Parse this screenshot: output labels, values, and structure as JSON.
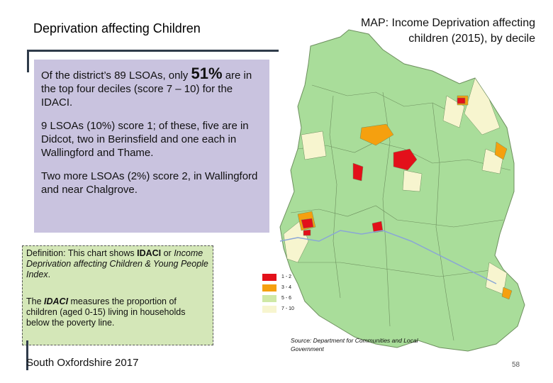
{
  "left": {
    "title": "Deprivation affecting Children",
    "summary": {
      "p1_start": "Of the district’s 89 LSOAs, only ",
      "p1_pct": "51%",
      "p1_end": " are in the top four deciles (score 7 – 10) for the IDACI.",
      "p2": "9 LSOAs (10%) score 1; of these, five are in Didcot, two in Berinsfield and one each in Wallingford and Thame.",
      "p3": "Two more LSOAs (2%) score 2, in Wallingford and near Chalgrove."
    },
    "definition": {
      "d1_a": "Definition: This chart shows ",
      "d1_b": "IDACI",
      "d1_c": " or ",
      "d1_d": "Income Deprivation affecting Children & Young People Index",
      "d1_e": ".",
      "d2_a": "The ",
      "d2_b": "IDACI",
      "d2_c": " measures the proportion of children (aged 0-15) living in households below the poverty line."
    },
    "footer": "South Oxfordshire 2017"
  },
  "map": {
    "title": "MAP: Income Deprivation affecting children (2015), by decile",
    "legend": [
      {
        "label": "1 - 2",
        "color": "#e3101a"
      },
      {
        "label": "3 - 4",
        "color": "#f5a00f"
      },
      {
        "label": "5 - 6",
        "color": "#cfe8a6"
      },
      {
        "label": "7 - 10",
        "color": "#f7f5cf"
      }
    ],
    "base_color": "#a9dd9a",
    "source": "Source: Department for Communities and Local Government"
  },
  "page_number": "58"
}
